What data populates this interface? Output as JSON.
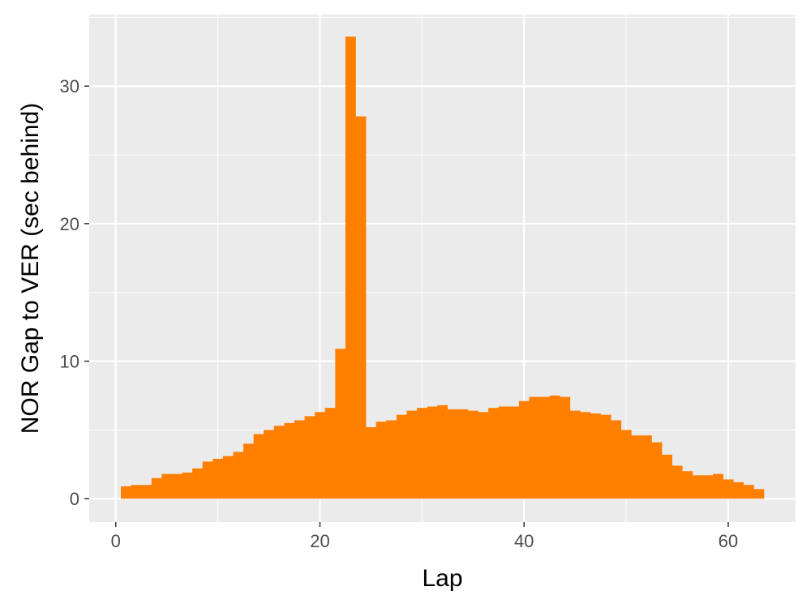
{
  "chart_data": {
    "type": "bar",
    "title": "",
    "xlabel": "Lap",
    "ylabel": "NOR Gap to VER (sec behind)",
    "bar_color": "#FF7F00",
    "panel_background": "#EBEBEB",
    "grid": true,
    "xlim": [
      -2.6,
      66.6
    ],
    "ylim": [
      -1.7,
      35.2
    ],
    "x_ticks": [
      0,
      20,
      40,
      60
    ],
    "y_ticks": [
      0,
      10,
      20,
      30
    ],
    "x_tick_labels": [
      "0",
      "20",
      "40",
      "60"
    ],
    "y_tick_labels": [
      "0",
      "10",
      "20",
      "30"
    ],
    "x": [
      1,
      2,
      3,
      4,
      5,
      6,
      7,
      8,
      9,
      10,
      11,
      12,
      13,
      14,
      15,
      16,
      17,
      18,
      19,
      20,
      21,
      22,
      23,
      24,
      25,
      26,
      27,
      28,
      29,
      30,
      31,
      32,
      33,
      34,
      35,
      36,
      37,
      38,
      39,
      40,
      41,
      42,
      43,
      44,
      45,
      46,
      47,
      48,
      49,
      50,
      51,
      52,
      53,
      54,
      55,
      56,
      57,
      58,
      59,
      60,
      61,
      62,
      63
    ],
    "values": [
      0.9,
      1.0,
      1.0,
      1.5,
      1.8,
      1.8,
      1.9,
      2.2,
      2.7,
      2.9,
      3.1,
      3.4,
      4.0,
      4.7,
      5.0,
      5.3,
      5.5,
      5.7,
      6.0,
      6.3,
      6.6,
      10.9,
      33.6,
      27.8,
      5.2,
      5.6,
      5.7,
      6.1,
      6.4,
      6.6,
      6.7,
      6.8,
      6.5,
      6.5,
      6.4,
      6.3,
      6.6,
      6.7,
      6.7,
      7.1,
      7.4,
      7.4,
      7.5,
      7.4,
      6.4,
      6.3,
      6.2,
      6.1,
      5.7,
      5.0,
      4.6,
      4.6,
      4.1,
      3.2,
      2.4,
      2.0,
      1.7,
      1.7,
      1.8,
      1.4,
      1.2,
      1.0,
      0.7
    ]
  }
}
